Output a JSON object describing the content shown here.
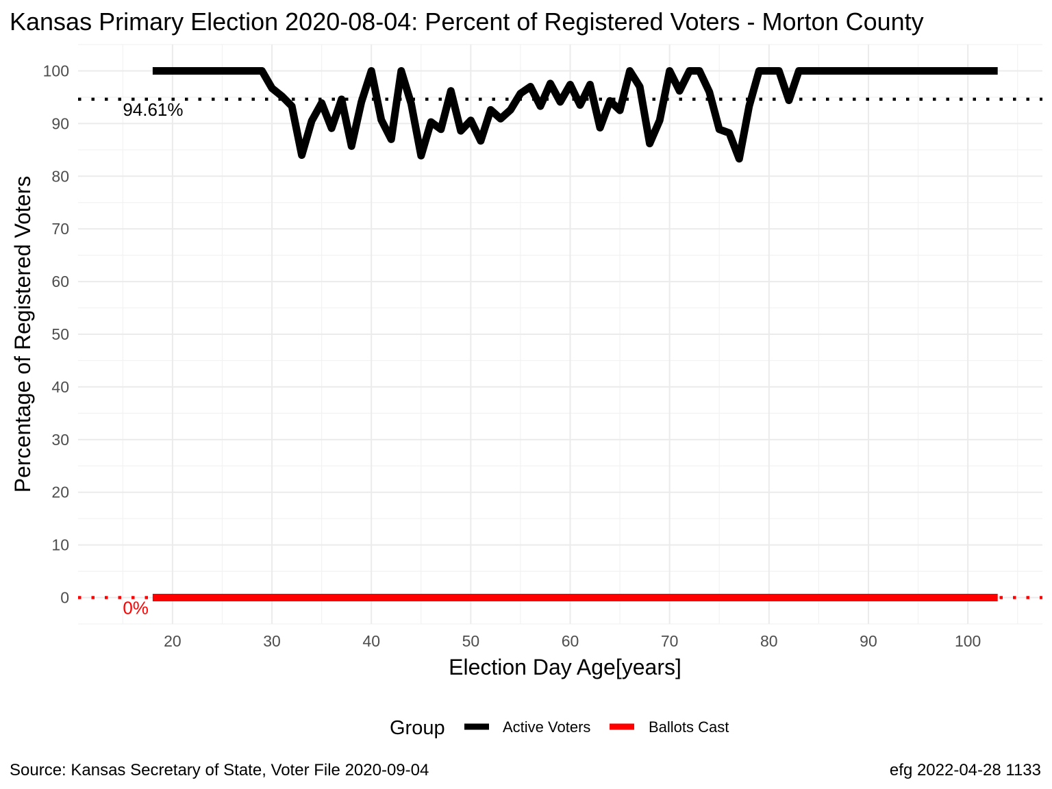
{
  "chart_data": {
    "type": "line",
    "title": "Kansas Primary Election 2020-08-04:  Percent of Registered Voters - Morton County",
    "xlabel": "Election Day Age[years]",
    "ylabel": "Percentage of Registered Voters",
    "xlim": [
      10.5,
      107.5
    ],
    "ylim": [
      -5,
      105
    ],
    "x_ticks": [
      20,
      30,
      40,
      50,
      60,
      70,
      80,
      90,
      100
    ],
    "y_ticks": [
      0,
      10,
      20,
      30,
      40,
      50,
      60,
      70,
      80,
      90,
      100
    ],
    "grid": true,
    "legend": {
      "title": "Group",
      "position": "bottom",
      "entries": [
        {
          "label": "Active Voters",
          "color": "#000000"
        },
        {
          "label": "Ballots Cast",
          "color": "#ff0000"
        }
      ]
    },
    "reference_lines": [
      {
        "y": 94.61,
        "label": "94.61%",
        "color": "#000000",
        "style": "dotted"
      },
      {
        "y": 0,
        "label": "0%",
        "color": "#ff0000",
        "style": "dotted"
      }
    ],
    "series": [
      {
        "name": "Active Voters",
        "color": "#000000",
        "points": [
          [
            18,
            100
          ],
          [
            19,
            100
          ],
          [
            20,
            100
          ],
          [
            21,
            100
          ],
          [
            22,
            100
          ],
          [
            23,
            100
          ],
          [
            24,
            100
          ],
          [
            25,
            100
          ],
          [
            26,
            100
          ],
          [
            27,
            100
          ],
          [
            28,
            100
          ],
          [
            29,
            100
          ],
          [
            30,
            96.7
          ],
          [
            31,
            95.2
          ],
          [
            32,
            93.3
          ],
          [
            33,
            84.0
          ],
          [
            34,
            90.5
          ],
          [
            35,
            93.9
          ],
          [
            36,
            89.1
          ],
          [
            37,
            94.6
          ],
          [
            38,
            85.7
          ],
          [
            39,
            94.1
          ],
          [
            40,
            100
          ],
          [
            41,
            90.7
          ],
          [
            42,
            87.0
          ],
          [
            43,
            100
          ],
          [
            44,
            93.8
          ],
          [
            45,
            83.9
          ],
          [
            46,
            90.3
          ],
          [
            47,
            88.9
          ],
          [
            48,
            96.2
          ],
          [
            49,
            88.6
          ],
          [
            50,
            90.6
          ],
          [
            51,
            86.7
          ],
          [
            52,
            92.6
          ],
          [
            53,
            90.9
          ],
          [
            54,
            92.6
          ],
          [
            55,
            95.7
          ],
          [
            56,
            97.0
          ],
          [
            57,
            93.3
          ],
          [
            58,
            97.6
          ],
          [
            59,
            94.1
          ],
          [
            60,
            97.4
          ],
          [
            61,
            93.5
          ],
          [
            62,
            97.4
          ],
          [
            63,
            89.2
          ],
          [
            64,
            94.3
          ],
          [
            65,
            92.5
          ],
          [
            66,
            100
          ],
          [
            67,
            97.0
          ],
          [
            68,
            86.2
          ],
          [
            69,
            90.6
          ],
          [
            70,
            100
          ],
          [
            71,
            96.2
          ],
          [
            72,
            100
          ],
          [
            73,
            100
          ],
          [
            74,
            96.0
          ],
          [
            75,
            88.9
          ],
          [
            76,
            88.2
          ],
          [
            77,
            83.3
          ],
          [
            78,
            93.3
          ],
          [
            79,
            100
          ],
          [
            80,
            100
          ],
          [
            81,
            100
          ],
          [
            82,
            94.4
          ],
          [
            83,
            100
          ],
          [
            84,
            100
          ],
          [
            85,
            100
          ],
          [
            86,
            100
          ],
          [
            87,
            100
          ],
          [
            88,
            100
          ],
          [
            89,
            100
          ],
          [
            90,
            100
          ],
          [
            91,
            100
          ],
          [
            92,
            100
          ],
          [
            93,
            100
          ],
          [
            94,
            100
          ],
          [
            95,
            100
          ],
          [
            96,
            100
          ],
          [
            97,
            100
          ],
          [
            98,
            100
          ],
          [
            99,
            100
          ],
          [
            100,
            100
          ],
          [
            101,
            100
          ],
          [
            102,
            100
          ],
          [
            103,
            100
          ]
        ]
      },
      {
        "name": "Ballots Cast",
        "color": "#ff0000",
        "points": [
          [
            18,
            0
          ],
          [
            103,
            0
          ]
        ]
      }
    ]
  },
  "caption": {
    "source": "Source:  Kansas Secretary of State, Voter File  2020-09-04",
    "credit": "efg 2022-04-28 1133"
  }
}
